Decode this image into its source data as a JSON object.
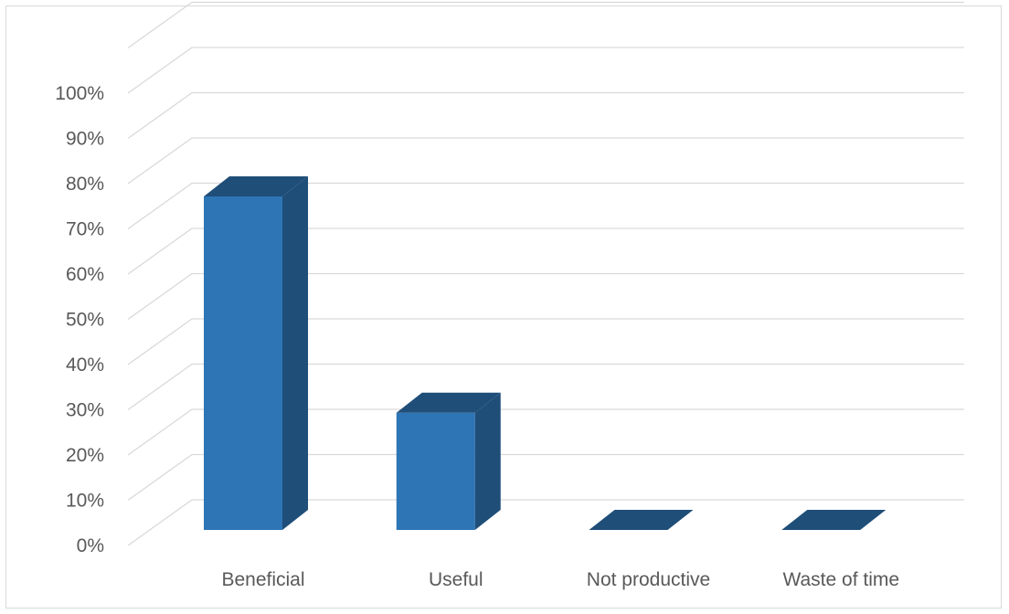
{
  "chart_data": {
    "type": "bar",
    "style": "3d-column",
    "categories": [
      "Beneficial",
      "Useful",
      "Not productive",
      "Waste of time"
    ],
    "values": [
      74,
      26,
      0,
      0
    ],
    "value_unit": "%",
    "ylim": [
      0,
      100
    ],
    "ytick_step": 10,
    "yticks": [
      "0%",
      "10%",
      "20%",
      "30%",
      "40%",
      "50%",
      "60%",
      "70%",
      "80%",
      "90%",
      "100%"
    ],
    "grid": true,
    "legend": "none",
    "colors": {
      "front": "#2e75b6",
      "side": "#1f4e79",
      "top": "#1f4e79",
      "grid": "#d9d9d9",
      "text": "#595959"
    }
  }
}
